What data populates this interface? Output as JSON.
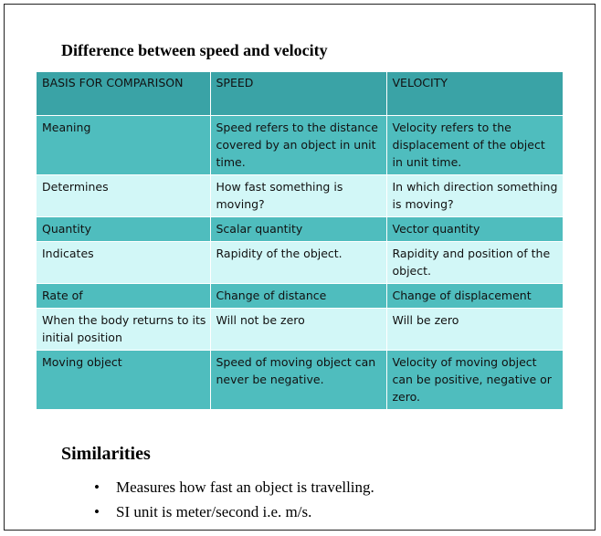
{
  "document": {
    "title": "Difference between speed and velocity",
    "table": {
      "headers": [
        "BASIS FOR COMPARISON",
        "SPEED",
        "VELOCITY"
      ],
      "rows": [
        [
          "Meaning",
          "Speed refers to the distance covered by an object in unit time.",
          "Velocity refers to the displacement of the object in unit time."
        ],
        [
          "Determines",
          "How fast something is moving?",
          "In which direction something is moving?"
        ],
        [
          "Quantity",
          "Scalar quantity",
          "Vector quantity"
        ],
        [
          "Indicates",
          "Rapidity of the object.",
          "Rapidity and position of the object."
        ],
        [
          "Rate of",
          "Change of distance",
          "Change of displacement"
        ],
        [
          "When the body returns to its initial position",
          "Will not be zero",
          "Will be zero"
        ],
        [
          "Moving object",
          "Speed of moving object can never be negative.",
          "Velocity of moving object can be positive, negative or zero."
        ]
      ]
    },
    "similarities": {
      "heading": "Similarities",
      "bullet_symbol": "•",
      "items": [
        "Measures how fast an object is travelling.",
        "SI unit is meter/second i.e. m/s."
      ]
    }
  },
  "colors": {
    "header_bg": "#3aa3a6",
    "row_dark_bg": "#4fbdbe",
    "row_light_bg": "#d2f7f7"
  }
}
